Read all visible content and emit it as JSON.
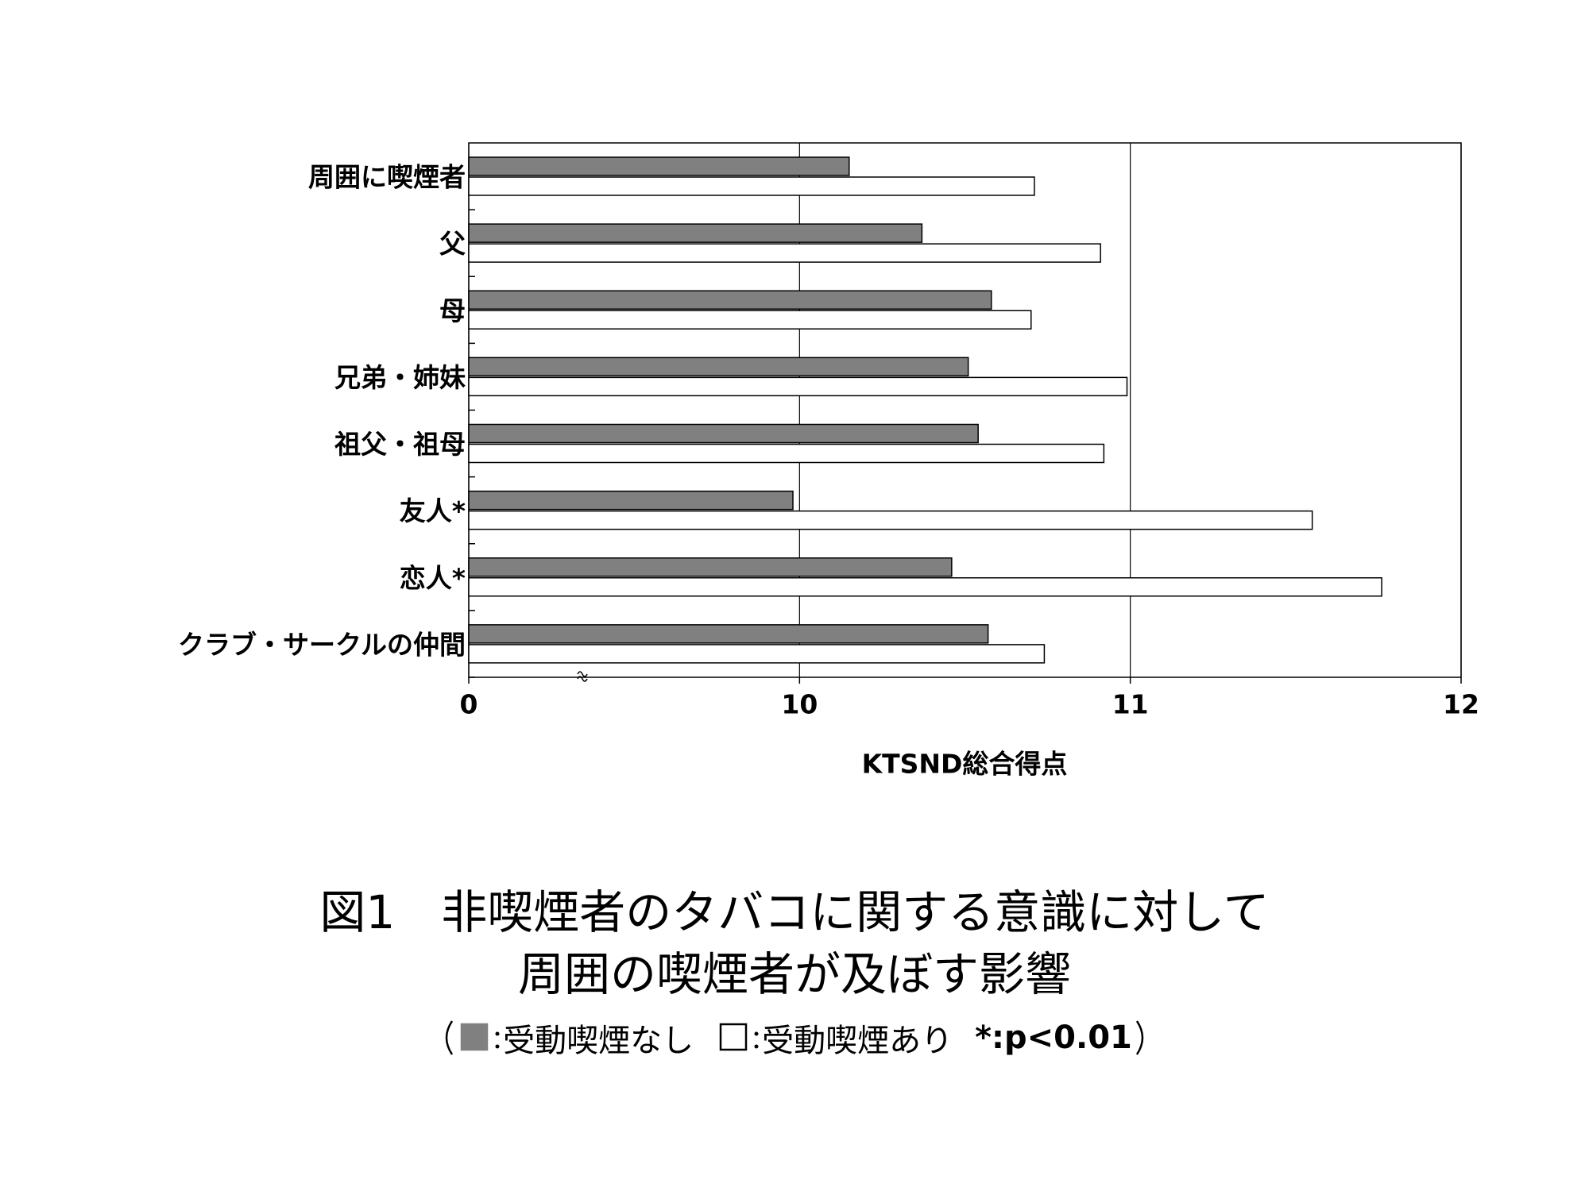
{
  "chart_data": {
    "type": "bar",
    "orientation": "horizontal",
    "title": [
      "図1　非喫煙者のタバコに関する意識に対して",
      "周囲の喫煙者が及ぼす影響"
    ],
    "xlabel": "KTSND総合得点",
    "categories": [
      "周囲に喫煙者",
      "父",
      "母",
      "兄弟・姉妹",
      "祖父・祖母",
      "友人*",
      "恋人*",
      "クラブ・サークルの仲間"
    ],
    "series": [
      {
        "name": "受動喫煙なし",
        "color": "#808080",
        "values": [
          10.15,
          10.37,
          10.58,
          10.51,
          10.54,
          9.98,
          10.46,
          10.57
        ]
      },
      {
        "name": "受動喫煙あり",
        "color": "#ffffff",
        "values": [
          10.71,
          10.91,
          10.7,
          10.99,
          10.92,
          11.55,
          11.76,
          10.74
        ]
      }
    ],
    "note": "*:p<0.01",
    "xlim": [
      0,
      12
    ],
    "xticks": [
      0,
      10,
      11,
      12
    ],
    "xbreak": [
      0,
      9
    ],
    "grid": true
  }
}
